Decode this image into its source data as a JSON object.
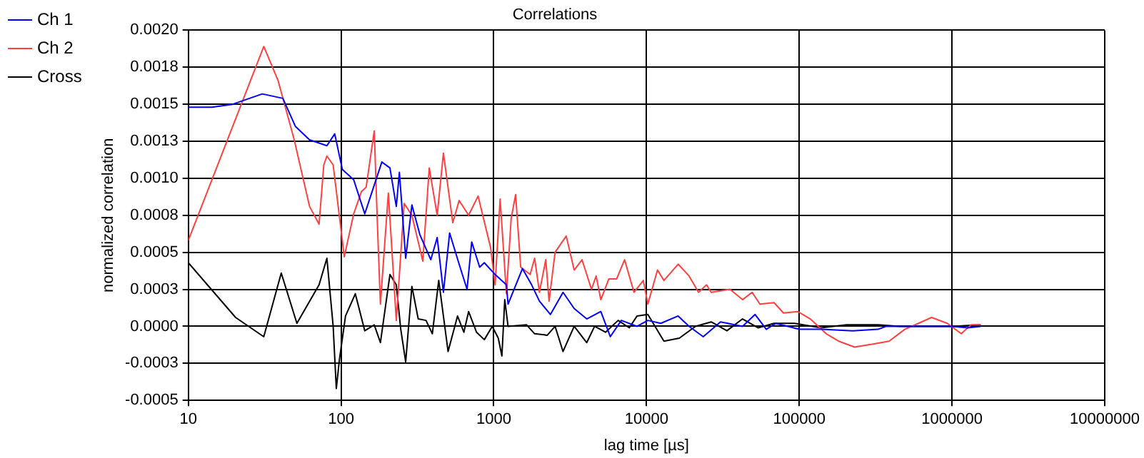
{
  "chart_data": {
    "type": "line",
    "title": "Correlations",
    "xlabel": "lag time [µs]",
    "ylabel": "normalized correlation",
    "log": "x",
    "grid": true,
    "legend": "top left",
    "marker": "none",
    "line_style": "solid",
    "xlim": [
      10,
      10000000
    ],
    "xticks": [
      10,
      100,
      1000,
      10000,
      100000,
      1000000,
      10000000
    ],
    "ylim": [
      -0.0005,
      0.002
    ],
    "yticks": [
      {
        "value": -0.0005,
        "label": "-0.0005"
      },
      {
        "value": -0.00025,
        "label": "-0.0003"
      },
      {
        "value": 0,
        "label": "0.0000"
      },
      {
        "value": 0.00025,
        "label": "0.0003"
      },
      {
        "value": 0.0005,
        "label": "0.0005"
      },
      {
        "value": 0.00075,
        "label": "0.0008"
      },
      {
        "value": 0.001,
        "label": "0.0010"
      },
      {
        "value": 0.00125,
        "label": "0.0013"
      },
      {
        "value": 0.0015,
        "label": "0.0015"
      },
      {
        "value": 0.00175,
        "label": "0.0018"
      },
      {
        "value": 0.002,
        "label": "0.0020"
      }
    ],
    "series": [
      {
        "name": "Ch 1",
        "color": "#0000ff",
        "x": [
          10,
          14.3,
          19.5,
          30.5,
          41.6,
          50.3,
          62.2,
          80.8,
          90.9,
          102,
          121,
          143,
          185,
          209,
          230,
          241,
          265,
          291,
          328,
          387,
          426,
          468,
          514,
          593,
          668,
          717,
          808,
          867,
          1020,
          1210,
          1240,
          1540,
          1770,
          1990,
          2350,
          2840,
          3360,
          4060,
          5020,
          5790,
          6840,
          8670,
          10200,
          12400,
          16100,
          19000,
          23500,
          30500,
          42500,
          51400,
          60800,
          70000,
          100000,
          139000,
          224000,
          328000,
          369000,
          1000000,
          1270000,
          1540000
        ],
        "values": [
          0.00148,
          0.00148,
          0.0015,
          0.00157,
          0.00154,
          0.00135,
          0.00126,
          0.00122,
          0.0013,
          0.00106,
          0.00099,
          0.00076,
          0.00111,
          0.00107,
          0.00081,
          0.00104,
          0.00046,
          0.00082,
          0.00062,
          0.00045,
          0.0006,
          0.00023,
          0.00063,
          0.00042,
          0.00025,
          0.00057,
          0.0004,
          0.00043,
          0.00035,
          0.00028,
          0.00015,
          0.00039,
          0.00028,
          0.00017,
          8e-05,
          0.00023,
          0.00012,
          5e-05,
          0.0001,
          -7e-05,
          4e-05,
          0,
          4e-05,
          2e-05,
          7e-05,
          0,
          -7e-05,
          3e-05,
          0,
          8e-05,
          -2e-05,
          2e-05,
          -2e-05,
          -2e-05,
          -3e-05,
          -2e-05,
          0,
          0,
          -1e-05,
          0
        ]
      },
      {
        "name": "Ch 2",
        "color": "#ff4040",
        "x": [
          10,
          31.2,
          38.7,
          49.1,
          62.2,
          71.8,
          77.1,
          80.8,
          88.8,
          105,
          121,
          136,
          146,
          165,
          173,
          181,
          204,
          230,
          259,
          291,
          343,
          378,
          426,
          468,
          539,
          593,
          684,
          789,
          954,
          1020,
          1100,
          1210,
          1300,
          1390,
          1500,
          1730,
          1850,
          1990,
          2190,
          2300,
          2520,
          2980,
          3360,
          3780,
          4360,
          4680,
          5020,
          5660,
          6370,
          7180,
          8280,
          9530,
          10200,
          11800,
          13000,
          16100,
          19000,
          21900,
          24700,
          26500,
          35200,
          42500,
          49100,
          55200,
          68400,
          78800,
          97700,
          118000,
          150000,
          181000,
          230000,
          305000,
          387000,
          491000,
          735000,
          931000,
          1150000,
          1330000,
          1540000
        ],
        "values": [
          0.00058,
          0.00189,
          0.00166,
          0.00127,
          0.00081,
          0.00069,
          0.00109,
          0.00115,
          0.00109,
          0.00047,
          0.00076,
          0.00091,
          0.00094,
          0.00132,
          0.00069,
          0.00015,
          0.0009,
          4e-05,
          0.00083,
          0.00075,
          0.00044,
          0.00107,
          0.00075,
          0.00117,
          0.0007,
          0.00085,
          0.00075,
          0.00088,
          0.00053,
          0.00028,
          0.00086,
          0.00022,
          0.00073,
          0.00089,
          0.0004,
          0.00035,
          0.00046,
          0.00023,
          0.00045,
          0.00017,
          0.0005,
          0.00061,
          0.00038,
          0.00045,
          0.00025,
          0.00034,
          0.00018,
          0.00032,
          0.00032,
          0.00045,
          0.00023,
          0.00031,
          0.00015,
          0.00038,
          0.00031,
          0.00042,
          0.00034,
          0.00023,
          0.00028,
          0.00023,
          0.00025,
          0.00018,
          0.00023,
          0.00015,
          0.00016,
          9e-05,
          0.0001,
          5e-05,
          -5e-05,
          -0.0001,
          -0.00014,
          -0.00012,
          -0.0001,
          -2e-05,
          6e-05,
          2e-05,
          -5e-05,
          1e-05,
          1e-05
        ]
      },
      {
        "name": "Cross",
        "color": "#000000",
        "x": [
          10,
          20.4,
          31.2,
          40.6,
          51.4,
          71.8,
          80.8,
          88.8,
          93.1,
          97.7,
          107,
          124,
          143,
          165,
          181,
          209,
          230,
          246,
          265,
          291,
          320,
          360,
          396,
          436,
          502,
          579,
          637,
          684,
          771,
          867,
          977,
          1070,
          1130,
          1180,
          1240,
          1640,
          1850,
          2240,
          2520,
          2840,
          3360,
          4060,
          4570,
          5390,
          6520,
          7710,
          8670,
          10200,
          13000,
          16400,
          20900,
          26500,
          33600,
          42500,
          53900,
          68400,
          93100,
          139000,
          204000,
          328000,
          457000,
          1000000,
          1540000
        ],
        "values": [
          0.00043,
          6e-05,
          -7e-05,
          0.00036,
          2e-05,
          0.00028,
          0.00046,
          0,
          -0.00042,
          -0.00022,
          7e-05,
          0.00022,
          -3e-05,
          1e-05,
          -0.00011,
          0.00035,
          0.00028,
          -2e-05,
          -0.00024,
          0.00027,
          5e-05,
          4e-05,
          -5e-05,
          0.00031,
          -0.00017,
          7e-05,
          -4e-05,
          0.0001,
          -4e-05,
          -9e-05,
          0,
          -8e-05,
          -0.0002,
          0.00018,
          0,
          1e-05,
          -5e-05,
          -6e-05,
          0,
          -0.00017,
          0,
          -0.00011,
          0,
          -4e-05,
          4e-05,
          -1e-05,
          7e-05,
          8e-05,
          -0.0001,
          -8e-05,
          0,
          3e-05,
          -3e-05,
          5e-05,
          -1e-05,
          2e-05,
          2e-05,
          -1e-05,
          1e-05,
          1e-05,
          0,
          0,
          1e-05
        ]
      }
    ]
  }
}
